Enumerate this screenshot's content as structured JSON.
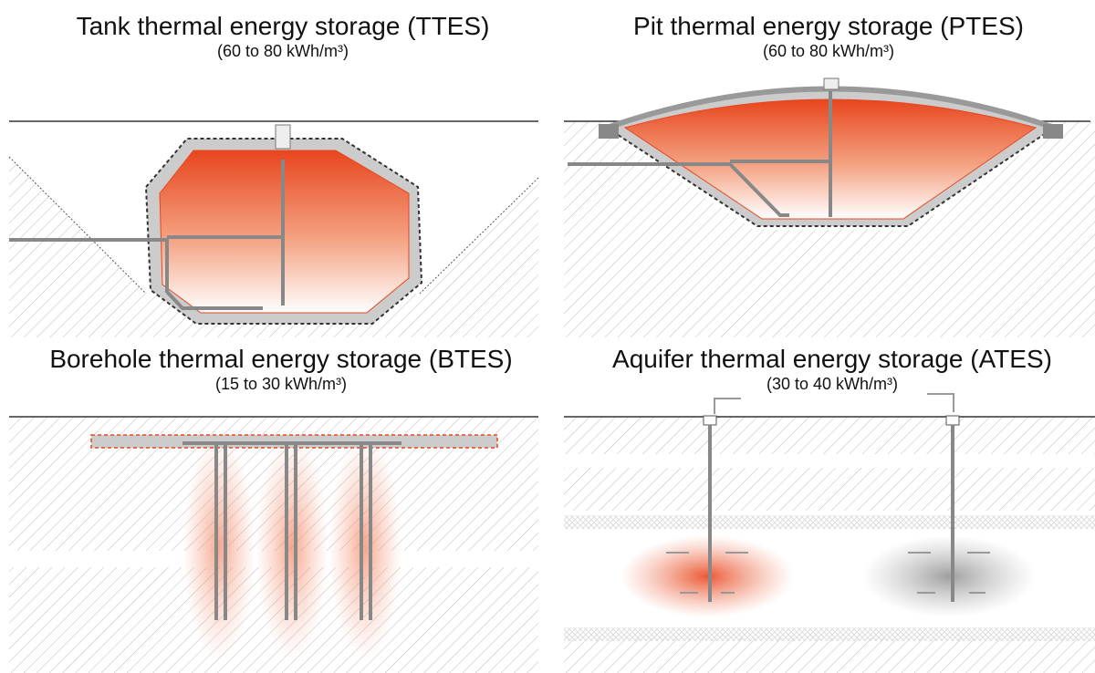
{
  "panels": [
    {
      "title": "Tank thermal energy storage (TTES)",
      "subtitle": "(60 to 80 kWh/m³)"
    },
    {
      "title": "Pit thermal energy storage (PTES)",
      "subtitle": "(60 to 80 kWh/m³)"
    },
    {
      "title": "Borehole thermal energy storage (BTES)",
      "subtitle": "(15 to 30 kWh/m³)"
    },
    {
      "title": "Aquifer thermal energy storage (ATES)",
      "subtitle": "(30 to 40 kWh/m³)"
    }
  ]
}
